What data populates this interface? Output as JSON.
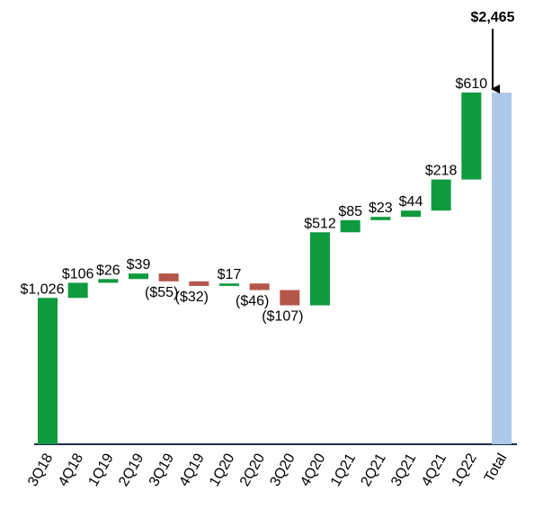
{
  "chart_data": {
    "type": "waterfall",
    "categories": [
      "3Q18",
      "4Q18",
      "1Q19",
      "2Q19",
      "3Q19",
      "4Q19",
      "1Q20",
      "2Q20",
      "3Q20",
      "4Q20",
      "1Q21",
      "2Q21",
      "3Q21",
      "4Q21",
      "1Q22",
      "Total"
    ],
    "values": [
      1026,
      106,
      26,
      39,
      -55,
      -32,
      17,
      -46,
      -107,
      512,
      85,
      23,
      44,
      218,
      610,
      2465
    ],
    "value_labels": [
      "$1,026",
      "$106",
      "$26",
      "$39",
      "($55)",
      "($32)",
      "$17",
      "($46)",
      "($107)",
      "$512",
      "$85",
      "$23",
      "$44",
      "$218",
      "$610",
      "$2,465"
    ],
    "colors": {
      "increase": "#0f9a3e",
      "decrease": "#b5564b",
      "total": "#aec8e8"
    }
  }
}
